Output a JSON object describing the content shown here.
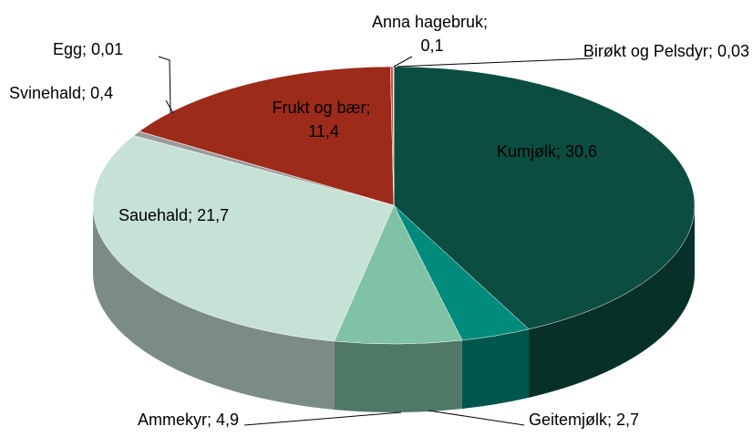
{
  "chart_data": {
    "type": "pie3d",
    "categories": [
      "Kumjølk",
      "Geitemjølk",
      "Ammekyr",
      "Sauehald",
      "Svinehald",
      "Egg",
      "Frukt og bær",
      "Anna hagebruk",
      "Birøkt og Pelsdyr"
    ],
    "values": [
      30.6,
      2.7,
      4.9,
      21.7,
      0.4,
      0.01,
      11.4,
      0.1,
      0.03
    ],
    "value_labels": [
      "30,6",
      "2,7",
      "4,9",
      "21,7",
      "0,4",
      "0,01",
      "11,4",
      "0,1",
      "0,03"
    ],
    "separator": "; ",
    "colors": [
      "#0b4d40",
      "#008b7c",
      "#80c2a6",
      "#c6e2d7",
      "#9a9a9a",
      "#cccccc",
      "#9c2b1a",
      "#c0504d",
      "#e3a27f"
    ]
  }
}
